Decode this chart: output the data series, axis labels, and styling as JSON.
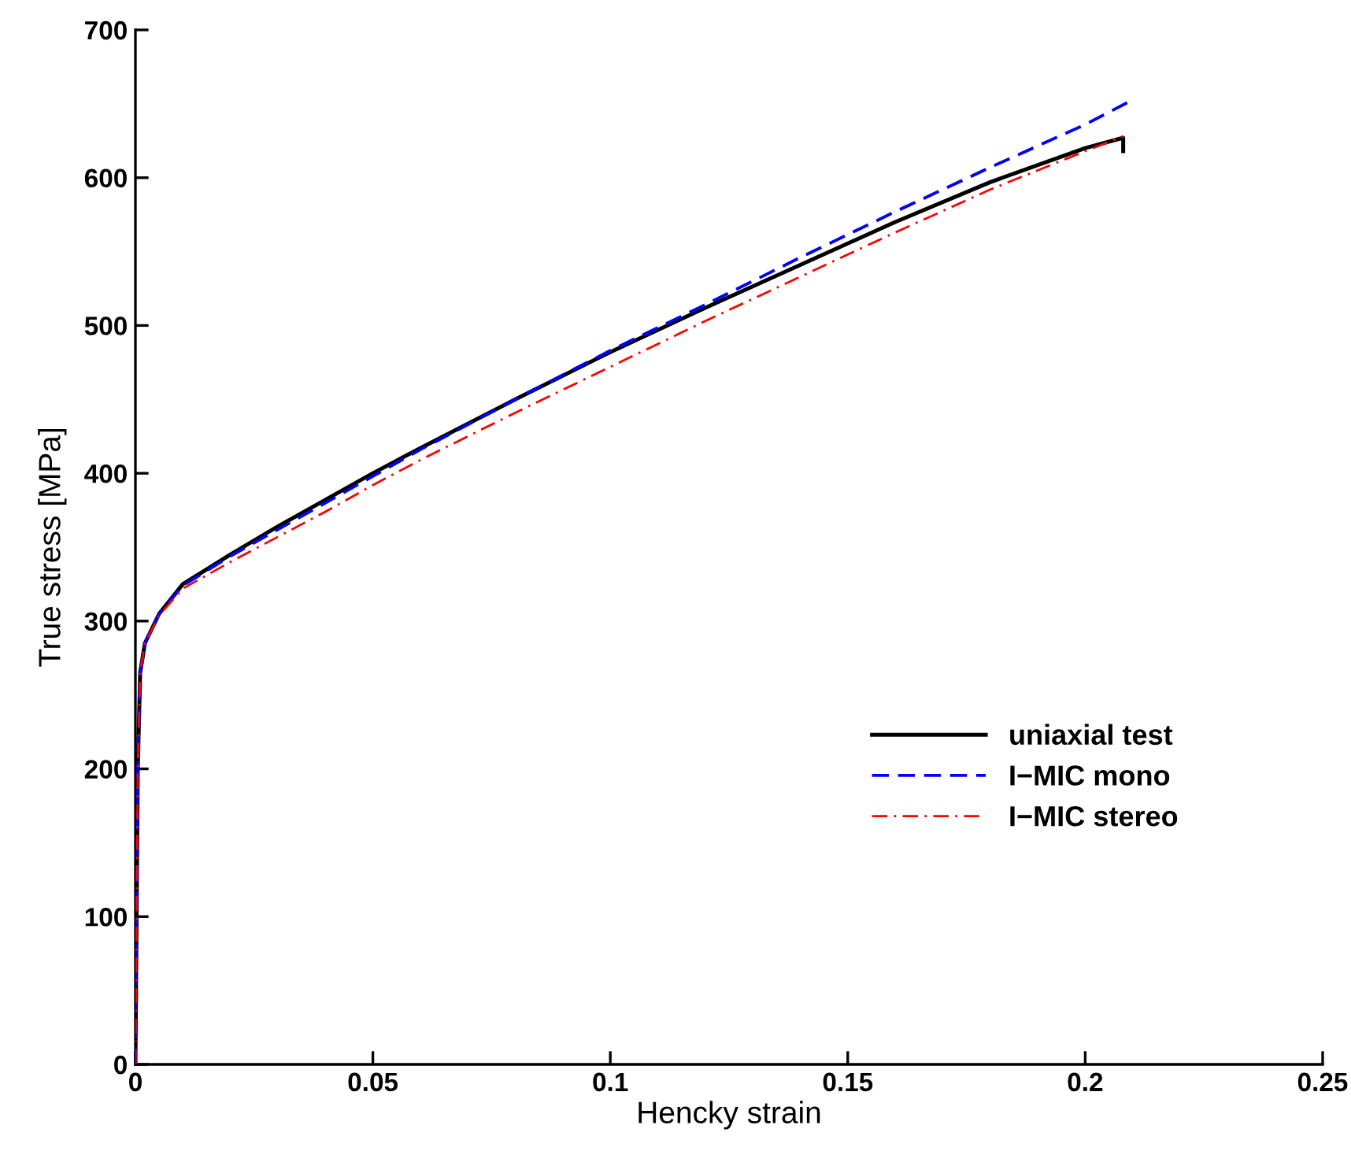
{
  "chart_data": {
    "type": "line",
    "xlabel": "Hencky strain",
    "ylabel": "True stress [MPa]",
    "xlim": [
      0,
      0.25
    ],
    "ylim": [
      0,
      700
    ],
    "xticks": [
      0,
      0.05,
      0.1,
      0.15,
      0.2,
      0.25
    ],
    "yticks": [
      0,
      100,
      200,
      300,
      400,
      500,
      600,
      700
    ],
    "grid": false,
    "legend": "bottom right",
    "marker": "none",
    "series": [
      {
        "name": "uniaxial test",
        "color": "#000000",
        "line_style": "solid",
        "x": [
          0,
          0.0005,
          0.001,
          0.002,
          0.005,
          0.01,
          0.02,
          0.03,
          0.04,
          0.05,
          0.06,
          0.08,
          0.1,
          0.12,
          0.14,
          0.16,
          0.18,
          0.2,
          0.208,
          0.208
        ],
        "values": [
          0,
          200,
          265,
          285,
          305,
          325,
          345,
          364,
          382,
          400,
          417,
          450,
          482,
          512,
          541,
          570,
          597,
          620,
          627,
          618
        ]
      },
      {
        "name": "I−MIC mono",
        "color": "#0000ff",
        "line_style": "dashed",
        "x": [
          0,
          0.0005,
          0.001,
          0.002,
          0.005,
          0.01,
          0.02,
          0.03,
          0.04,
          0.05,
          0.06,
          0.08,
          0.1,
          0.12,
          0.14,
          0.16,
          0.18,
          0.2,
          0.209
        ],
        "values": [
          0,
          200,
          265,
          285,
          305,
          324,
          344,
          362,
          380,
          398,
          416,
          450,
          483,
          514,
          546,
          577,
          607,
          636,
          651
        ]
      },
      {
        "name": "I−MIC stereo",
        "color": "#ff0000",
        "line_style": "dashdot",
        "x": [
          0,
          0.0005,
          0.001,
          0.002,
          0.005,
          0.01,
          0.02,
          0.03,
          0.04,
          0.05,
          0.06,
          0.08,
          0.1,
          0.12,
          0.14,
          0.16,
          0.18,
          0.2,
          0.208
        ],
        "values": [
          0,
          200,
          265,
          285,
          304,
          322,
          340,
          357,
          374,
          392,
          409,
          441,
          472,
          503,
          533,
          563,
          592,
          618,
          628
        ]
      }
    ]
  }
}
